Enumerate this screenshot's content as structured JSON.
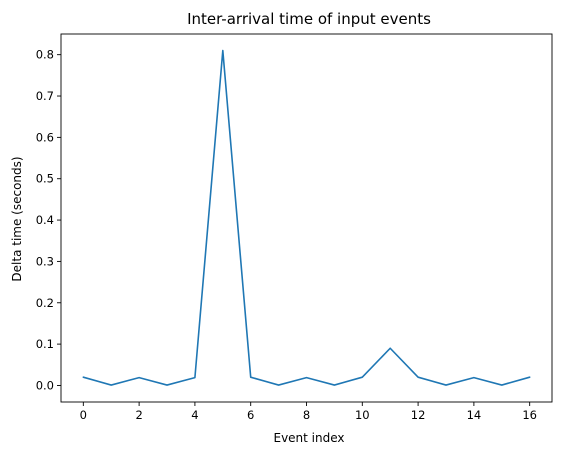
{
  "chart_data": {
    "type": "line",
    "title": "Inter-arrival time of input events",
    "xlabel": "Event index",
    "ylabel": "Delta time (seconds)",
    "x": [
      0,
      1,
      2,
      3,
      4,
      5,
      6,
      7,
      8,
      9,
      10,
      11,
      12,
      13,
      14,
      15,
      16
    ],
    "series": [
      {
        "color": "#1f77b4",
        "values": [
          0.02,
          0.001,
          0.019,
          0.001,
          0.019,
          0.81,
          0.02,
          0.001,
          0.019,
          0.001,
          0.02,
          0.09,
          0.02,
          0.001,
          0.019,
          0.001,
          0.02
        ]
      }
    ],
    "xlim": [
      -0.8,
      16.8
    ],
    "ylim": [
      -0.04,
      0.85
    ],
    "xticks": [
      0,
      2,
      4,
      6,
      8,
      10,
      12,
      14,
      16
    ],
    "yticks": [
      0.0,
      0.1,
      0.2,
      0.3,
      0.4,
      0.5,
      0.6,
      0.7,
      0.8
    ],
    "ytick_labels": [
      "0.0",
      "0.1",
      "0.2",
      "0.3",
      "0.4",
      "0.5",
      "0.6",
      "0.7",
      "0.8"
    ],
    "grid": false,
    "legend": "none"
  }
}
